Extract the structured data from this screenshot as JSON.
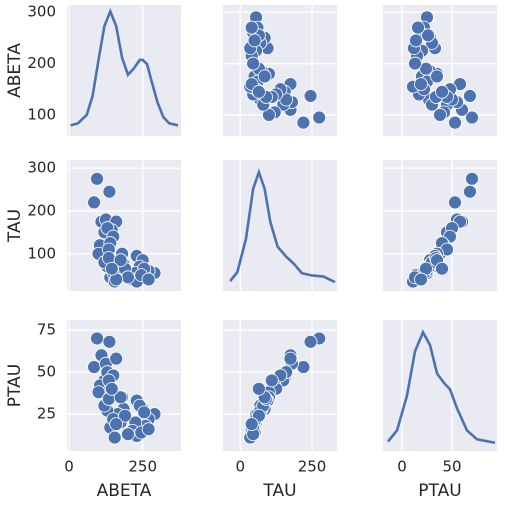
{
  "chart_data": {
    "type": "pairplot",
    "color": "#4c72b0",
    "grid": true,
    "variables": [
      {
        "name": "ABETA",
        "values": [
          95,
          137,
          85,
          110,
          125,
          160,
          145,
          120,
          130,
          150,
          105,
          140,
          100,
          135,
          180,
          230,
          250,
          290,
          270,
          260,
          240,
          225,
          255,
          215,
          230,
          245,
          270,
          175,
          185,
          165,
          130,
          120,
          140,
          150,
          155,
          190,
          135,
          200,
          160,
          175,
          145
        ],
        "xlim": [
          -7,
          380
        ],
        "xticks": [
          0,
          250
        ],
        "ylim": [
          59,
          314
        ],
        "yticks": [
          100,
          200,
          300
        ],
        "kde": {
          "x": [
            5,
            30,
            60,
            80,
            100,
            120,
            140,
            160,
            180,
            200,
            220,
            240,
            250,
            265,
            280,
            300,
            320,
            340,
            370
          ],
          "values": [
            0.0001,
            0.0002,
            0.0006,
            0.0015,
            0.0032,
            0.0048,
            0.0055,
            0.0048,
            0.0033,
            0.0025,
            0.0028,
            0.0032,
            0.0032,
            0.003,
            0.0022,
            0.0012,
            0.0005,
            0.0002,
            0.0001
          ],
          "lim": [
            -0.0004,
            0.0058
          ]
        }
      },
      {
        "name": "TAU",
        "values": [
          275,
          245,
          220,
          175,
          180,
          175,
          155,
          150,
          160,
          140,
          120,
          125,
          100,
          110,
          100,
          95,
          85,
          55,
          60,
          45,
          70,
          55,
          65,
          40,
          35,
          50,
          40,
          50,
          75,
          60,
          70,
          80,
          45,
          55,
          35,
          65,
          90,
          45,
          40,
          85,
          65
        ],
        "xlim": [
          -60,
          337
        ],
        "xticks": [
          0,
          250
        ],
        "ylim": [
          13,
          319
        ],
        "yticks": [
          100,
          200,
          300
        ],
        "kde": {
          "x": [
            -35,
            -10,
            20,
            45,
            65,
            85,
            105,
            130,
            160,
            185,
            215,
            250,
            290,
            330
          ],
          "values": [
            0.0002,
            0.001,
            0.004,
            0.0085,
            0.01,
            0.0085,
            0.0055,
            0.0033,
            0.0024,
            0.0018,
            0.0009,
            0.0007,
            0.0006,
            0.0001
          ],
          "lim": [
            -0.0007,
            0.0111
          ]
        }
      },
      {
        "name": "PTAU",
        "values": [
          70,
          68,
          53,
          60,
          55,
          58,
          47,
          45,
          50,
          48,
          42,
          40,
          38,
          45,
          35,
          33,
          28,
          25,
          22,
          18,
          30,
          20,
          26,
          15,
          12,
          14,
          16,
          20,
          28,
          25,
          27,
          30,
          17,
          22,
          11,
          24,
          34,
          13,
          19,
          35,
          40
        ],
        "xlim": [
          -19,
          95
        ],
        "xticks": [
          0,
          50
        ],
        "ylim": [
          3,
          81
        ],
        "yticks": [
          25,
          50,
          75
        ],
        "kde": {
          "x": [
            -14,
            -5,
            5,
            13,
            21,
            28,
            35,
            42,
            48,
            55,
            65,
            75,
            93
          ],
          "values": [
            0.0005,
            0.004,
            0.015,
            0.029,
            0.035,
            0.031,
            0.022,
            0.019,
            0.017,
            0.011,
            0.004,
            0.0012,
            0.0001
          ],
          "lim": [
            -0.0025,
            0.0389
          ]
        }
      }
    ]
  }
}
